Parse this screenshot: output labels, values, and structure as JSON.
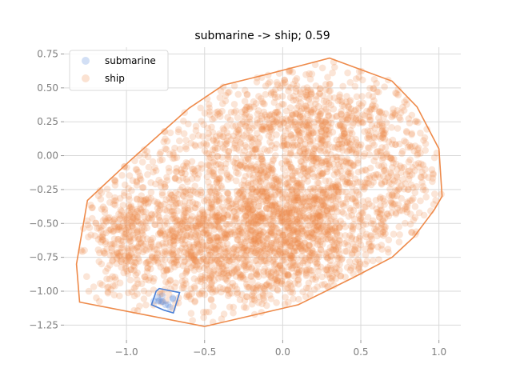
{
  "chart_data": {
    "type": "scatter",
    "title": "submarine -> ship; 0.59",
    "xlabel": "",
    "ylabel": "",
    "xlim": [
      -1.4,
      1.14
    ],
    "ylim": [
      -1.36,
      0.8
    ],
    "x_ticks": [
      -1.0,
      -0.5,
      0.0,
      0.5,
      1.0
    ],
    "x_tick_labels": [
      "−1.0",
      "−0.5",
      "0.0",
      "0.5",
      "1.0"
    ],
    "y_ticks": [
      0.75,
      0.5,
      0.25,
      0.0,
      -0.25,
      -0.5,
      -0.75,
      -1.0,
      -1.25
    ],
    "y_tick_labels": [
      "0.75",
      "0.50",
      "0.25",
      "0.00",
      "−0.25",
      "−0.50",
      "−0.75",
      "−1.00",
      "−1.25"
    ],
    "grid": true,
    "legend_position": "top-left",
    "series": [
      {
        "name": "submarine",
        "color": "#4a7fd6",
        "cluster": {
          "center": [
            -0.76,
            -1.07
          ],
          "spread": [
            0.05,
            0.04
          ],
          "count": 12
        },
        "hull": [
          [
            -0.79,
            -0.98
          ],
          [
            -0.66,
            -1.01
          ],
          [
            -0.7,
            -1.16
          ],
          [
            -0.76,
            -1.14
          ],
          [
            -0.84,
            -1.1
          ],
          [
            -0.81,
            -1.0
          ]
        ]
      },
      {
        "name": "ship",
        "color": "#ee8a4a",
        "clusters": [
          {
            "center": [
              -0.15,
              -0.65
            ],
            "spread": [
              0.42,
              0.28
            ],
            "count": 1300
          },
          {
            "center": [
              0.15,
              -0.35
            ],
            "spread": [
              0.3,
              0.3
            ],
            "count": 600
          },
          {
            "center": [
              -0.75,
              -0.55
            ],
            "spread": [
              0.28,
              0.3
            ],
            "count": 450
          },
          {
            "center": [
              0.25,
              0.25
            ],
            "spread": [
              0.28,
              0.26
            ],
            "count": 550
          },
          {
            "center": [
              -0.35,
              0.05
            ],
            "spread": [
              0.3,
              0.25
            ],
            "count": 300
          },
          {
            "center": [
              0.75,
              -0.1
            ],
            "spread": [
              0.18,
              0.25
            ],
            "count": 200
          },
          {
            "center": [
              -1.05,
              -0.6
            ],
            "spread": [
              0.12,
              0.3
            ],
            "count": 150
          }
        ],
        "hull": [
          [
            0.3,
            0.72
          ],
          [
            0.7,
            0.55
          ],
          [
            0.86,
            0.36
          ],
          [
            1.0,
            0.05
          ],
          [
            1.02,
            -0.3
          ],
          [
            0.97,
            -0.4
          ],
          [
            0.84,
            -0.6
          ],
          [
            0.7,
            -0.75
          ],
          [
            0.45,
            -0.9
          ],
          [
            0.1,
            -1.1
          ],
          [
            -0.5,
            -1.26
          ],
          [
            -1.3,
            -1.08
          ],
          [
            -1.32,
            -0.8
          ],
          [
            -1.25,
            -0.33
          ],
          [
            -0.97,
            -0.03
          ],
          [
            -0.6,
            0.35
          ],
          [
            -0.38,
            0.52
          ],
          [
            -0.1,
            0.6
          ]
        ]
      }
    ]
  }
}
